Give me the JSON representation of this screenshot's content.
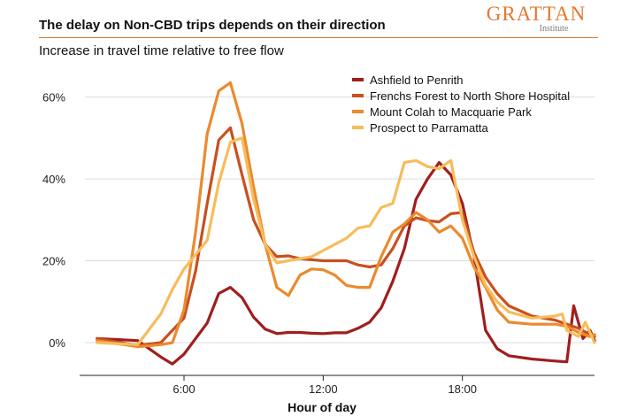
{
  "header": {
    "title": "The delay on Non-CBD trips depends on their direction",
    "subtitle": "Increase in travel time relative to free flow",
    "logo_main": "GRATTAN",
    "logo_sub": "Institute"
  },
  "colors": {
    "accent": "#e3782d",
    "series": [
      "#a01e1e",
      "#c94f1f",
      "#eb8a2e",
      "#f7bc5a"
    ],
    "grid": "#dcdcdc"
  },
  "chart_data": {
    "type": "line",
    "xlabel": "Hour of day",
    "ylabel": "",
    "xlim": [
      1.5,
      24.0
    ],
    "ylim": [
      -0.08,
      0.69
    ],
    "x_ticks": [
      6,
      12,
      18
    ],
    "x_tick_labels": [
      "6:00",
      "12:00",
      "18:00"
    ],
    "y_ticks": [
      0,
      0.2,
      0.4,
      0.6
    ],
    "y_tick_labels": [
      "0%",
      "20%",
      "40%",
      "60%"
    ],
    "grid": "horizontal",
    "legend_position": "top-right",
    "series": [
      {
        "name": "Ashfield to Penrith",
        "points": [
          [
            2.25,
            0.01
          ],
          [
            4.0,
            0.005
          ],
          [
            5.0,
            -0.035
          ],
          [
            5.5,
            -0.052
          ],
          [
            6.0,
            -0.028
          ],
          [
            6.5,
            0.01
          ],
          [
            7.0,
            0.048
          ],
          [
            7.5,
            0.12
          ],
          [
            8.0,
            0.135
          ],
          [
            8.5,
            0.11
          ],
          [
            9.0,
            0.062
          ],
          [
            9.5,
            0.033
          ],
          [
            10.0,
            0.022
          ],
          [
            10.5,
            0.025
          ],
          [
            11.0,
            0.025
          ],
          [
            11.5,
            0.023
          ],
          [
            12.0,
            0.022
          ],
          [
            12.5,
            0.024
          ],
          [
            13.0,
            0.024
          ],
          [
            13.5,
            0.035
          ],
          [
            14.0,
            0.05
          ],
          [
            14.5,
            0.085
          ],
          [
            15.0,
            0.15
          ],
          [
            15.5,
            0.23
          ],
          [
            16.0,
            0.35
          ],
          [
            16.5,
            0.4
          ],
          [
            17.0,
            0.44
          ],
          [
            17.5,
            0.41
          ],
          [
            18.0,
            0.34
          ],
          [
            18.5,
            0.21
          ],
          [
            19.0,
            0.03
          ],
          [
            19.5,
            -0.015
          ],
          [
            20.0,
            -0.032
          ],
          [
            21.0,
            -0.04
          ],
          [
            22.0,
            -0.045
          ],
          [
            22.5,
            -0.047
          ],
          [
            22.8,
            0.09
          ],
          [
            23.2,
            0.01
          ],
          [
            23.5,
            0.03
          ],
          [
            23.7,
            0.005
          ]
        ]
      },
      {
        "name": "Frenchs Forest to North Shore Hospital",
        "points": [
          [
            2.25,
            0.01
          ],
          [
            4.0,
            -0.007
          ],
          [
            5.0,
            0.0
          ],
          [
            6.0,
            0.06
          ],
          [
            6.5,
            0.175
          ],
          [
            7.0,
            0.34
          ],
          [
            7.5,
            0.495
          ],
          [
            8.0,
            0.525
          ],
          [
            8.5,
            0.41
          ],
          [
            9.0,
            0.3
          ],
          [
            9.5,
            0.24
          ],
          [
            10.0,
            0.21
          ],
          [
            10.5,
            0.212
          ],
          [
            11.0,
            0.205
          ],
          [
            12.0,
            0.2
          ],
          [
            13.0,
            0.2
          ],
          [
            13.5,
            0.19
          ],
          [
            14.0,
            0.185
          ],
          [
            14.5,
            0.19
          ],
          [
            15.0,
            0.23
          ],
          [
            15.5,
            0.285
          ],
          [
            16.0,
            0.305
          ],
          [
            16.5,
            0.298
          ],
          [
            17.0,
            0.295
          ],
          [
            17.5,
            0.315
          ],
          [
            18.0,
            0.318
          ],
          [
            18.5,
            0.22
          ],
          [
            19.0,
            0.16
          ],
          [
            19.5,
            0.12
          ],
          [
            20.0,
            0.09
          ],
          [
            21.0,
            0.065
          ],
          [
            22.0,
            0.055
          ],
          [
            23.0,
            0.035
          ],
          [
            23.5,
            0.02
          ],
          [
            23.7,
            0.015
          ]
        ]
      },
      {
        "name": "Mount Colah to Macquarie Park",
        "points": [
          [
            2.25,
            0.005
          ],
          [
            4.0,
            -0.01
          ],
          [
            5.0,
            -0.005
          ],
          [
            5.5,
            0.0
          ],
          [
            6.0,
            0.08
          ],
          [
            6.5,
            0.27
          ],
          [
            7.0,
            0.51
          ],
          [
            7.5,
            0.615
          ],
          [
            8.0,
            0.635
          ],
          [
            8.5,
            0.535
          ],
          [
            9.0,
            0.38
          ],
          [
            9.5,
            0.24
          ],
          [
            10.0,
            0.135
          ],
          [
            10.5,
            0.115
          ],
          [
            11.0,
            0.165
          ],
          [
            11.5,
            0.18
          ],
          [
            12.0,
            0.178
          ],
          [
            12.5,
            0.165
          ],
          [
            13.0,
            0.14
          ],
          [
            13.5,
            0.135
          ],
          [
            14.0,
            0.135
          ],
          [
            14.5,
            0.21
          ],
          [
            15.0,
            0.27
          ],
          [
            15.5,
            0.29
          ],
          [
            16.0,
            0.318
          ],
          [
            16.5,
            0.3
          ],
          [
            17.0,
            0.27
          ],
          [
            17.5,
            0.285
          ],
          [
            18.0,
            0.255
          ],
          [
            18.5,
            0.185
          ],
          [
            19.0,
            0.135
          ],
          [
            19.5,
            0.08
          ],
          [
            20.0,
            0.05
          ],
          [
            21.0,
            0.045
          ],
          [
            22.0,
            0.045
          ],
          [
            22.5,
            0.04
          ],
          [
            23.0,
            0.025
          ],
          [
            23.5,
            0.015
          ],
          [
            23.7,
            0.02
          ]
        ]
      },
      {
        "name": "Prospect to Parramatta",
        "points": [
          [
            2.25,
            0.0
          ],
          [
            4.0,
            -0.005
          ],
          [
            5.0,
            0.07
          ],
          [
            5.5,
            0.13
          ],
          [
            6.0,
            0.18
          ],
          [
            6.5,
            0.215
          ],
          [
            7.0,
            0.25
          ],
          [
            7.5,
            0.39
          ],
          [
            8.0,
            0.49
          ],
          [
            8.5,
            0.5
          ],
          [
            9.0,
            0.35
          ],
          [
            9.5,
            0.24
          ],
          [
            10.0,
            0.195
          ],
          [
            10.5,
            0.2
          ],
          [
            11.0,
            0.205
          ],
          [
            11.5,
            0.21
          ],
          [
            12.0,
            0.225
          ],
          [
            12.5,
            0.24
          ],
          [
            13.0,
            0.255
          ],
          [
            13.5,
            0.28
          ],
          [
            14.0,
            0.285
          ],
          [
            14.5,
            0.33
          ],
          [
            15.0,
            0.34
          ],
          [
            15.5,
            0.44
          ],
          [
            16.0,
            0.445
          ],
          [
            16.5,
            0.43
          ],
          [
            17.0,
            0.425
          ],
          [
            17.5,
            0.445
          ],
          [
            18.0,
            0.3
          ],
          [
            18.5,
            0.21
          ],
          [
            19.0,
            0.14
          ],
          [
            19.5,
            0.1
          ],
          [
            20.0,
            0.075
          ],
          [
            21.0,
            0.06
          ],
          [
            22.0,
            0.065
          ],
          [
            22.3,
            0.07
          ],
          [
            22.5,
            0.03
          ],
          [
            23.0,
            0.015
          ],
          [
            23.3,
            0.05
          ],
          [
            23.7,
            0.0
          ]
        ]
      }
    ]
  }
}
